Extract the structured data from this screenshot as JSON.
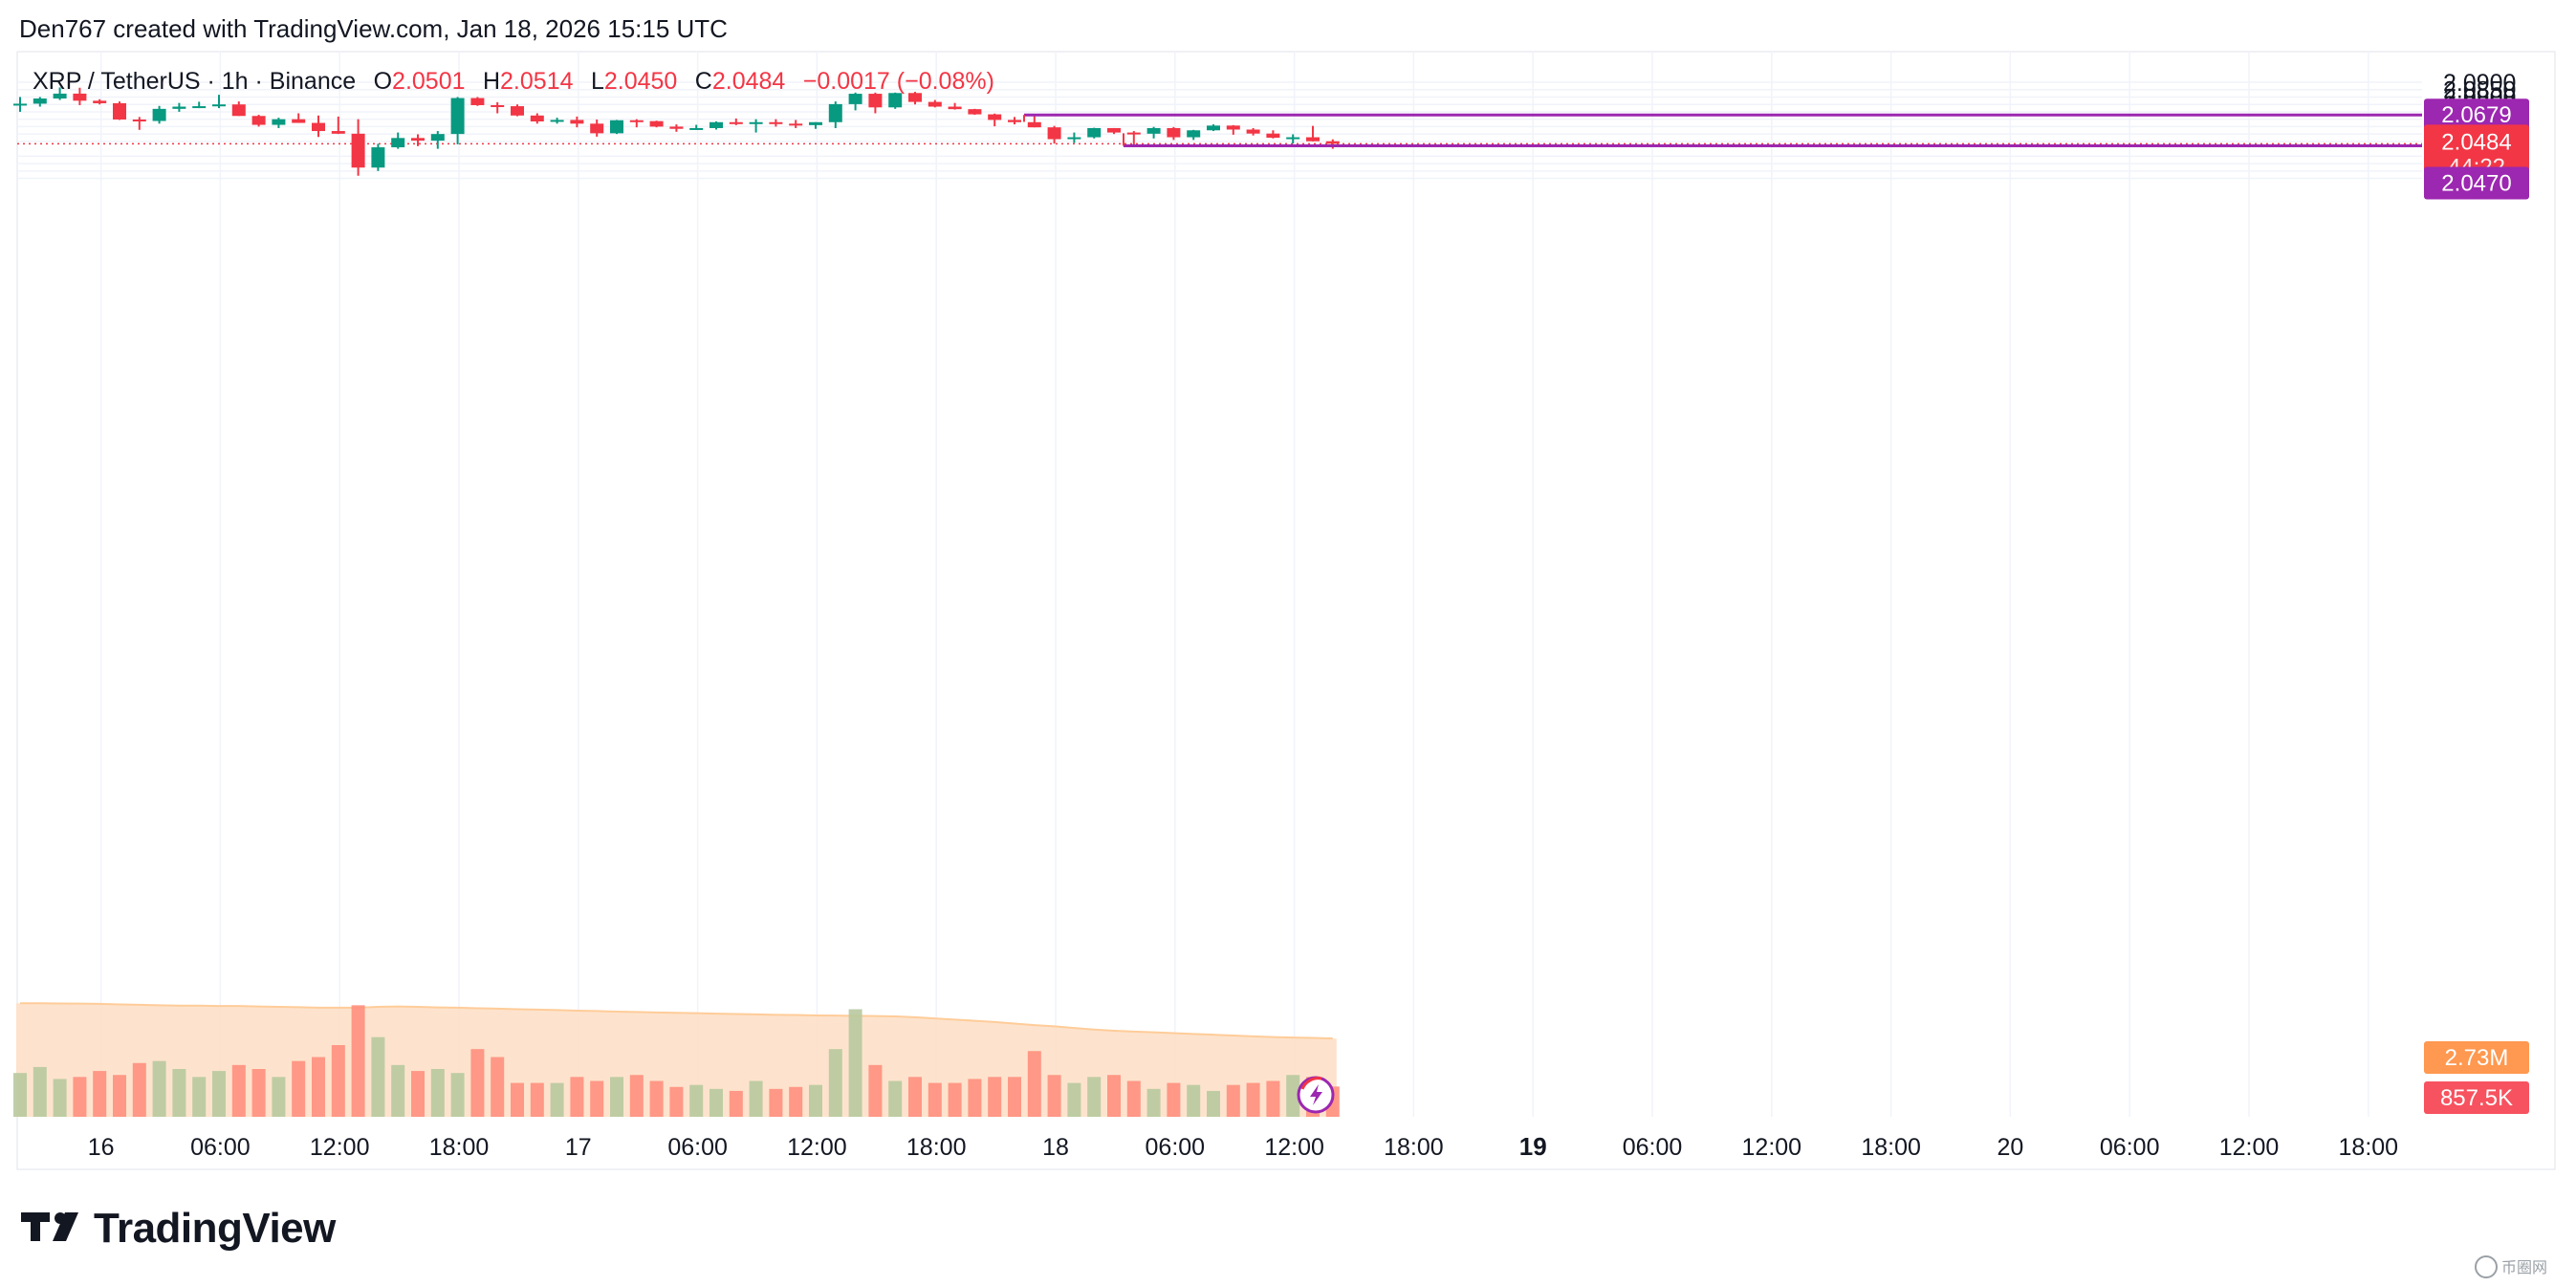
{
  "credit": "Den767 created with TradingView.com, Jan 18, 2026 15:15 UTC",
  "legend": {
    "symbol": "XRP / TetherUS · 1h · Binance",
    "open_label": "O",
    "open": "2.0501",
    "high_label": "H",
    "high": "2.0514",
    "low_label": "L",
    "low": "2.0450",
    "close_label": "C",
    "close": "2.0484",
    "change": "−0.0017 (−0.08%)"
  },
  "logo": {
    "text": "TradingView",
    "icon": "tradingview-logo-icon"
  },
  "watermark": {
    "text": "币圈网",
    "icon": "bqw-logo-icon"
  },
  "colors": {
    "up": "#089981",
    "down": "#f23645",
    "level": "#9c27b0",
    "volume_ma": "#ffcc99",
    "volume_ma_area": "#fde0c8",
    "volume_up": "#b8c99f",
    "volume_down": "#ff8f7e",
    "vol_ma_tag": "#ff9850",
    "vol_tag": "#f7525f"
  },
  "chart_data": {
    "type": "candlestick",
    "symbol": "XRP / TetherUS",
    "interval": "1h",
    "exchange": "Binance",
    "ylim": [
      2.0237,
      2.0922
    ],
    "price_ticks": [
      "2.0900",
      "2.0850",
      "2.0800",
      "2.0750",
      "2.0700",
      "2.0650",
      "2.0600",
      "2.0550",
      "2.0500",
      "2.0400",
      "2.0350",
      "2.0300",
      "2.0250"
    ],
    "time_ticks": [
      {
        "label": "16",
        "bold": false,
        "bar": 2
      },
      {
        "label": "06:00",
        "bold": false,
        "bar": 8
      },
      {
        "label": "12:00",
        "bold": false,
        "bar": 14
      },
      {
        "label": "18:00",
        "bold": false,
        "bar": 20
      },
      {
        "label": "17",
        "bold": false,
        "bar": 26
      },
      {
        "label": "06:00",
        "bold": false,
        "bar": 32
      },
      {
        "label": "12:00",
        "bold": false,
        "bar": 38
      },
      {
        "label": "18:00",
        "bold": false,
        "bar": 44
      },
      {
        "label": "18",
        "bold": false,
        "bar": 50
      },
      {
        "label": "06:00",
        "bold": false,
        "bar": 56
      },
      {
        "label": "12:00",
        "bold": false,
        "bar": 62
      },
      {
        "label": "18:00",
        "bold": false,
        "bar": 68
      },
      {
        "label": "19",
        "bold": true,
        "bar": 74
      },
      {
        "label": "06:00",
        "bold": false,
        "bar": 80
      },
      {
        "label": "12:00",
        "bold": false,
        "bar": 86
      },
      {
        "label": "18:00",
        "bold": false,
        "bar": 92
      },
      {
        "label": "20",
        "bold": false,
        "bar": 98
      },
      {
        "label": "06:00",
        "bold": false,
        "bar": 104
      },
      {
        "label": "12:00",
        "bold": false,
        "bar": 110
      },
      {
        "label": "18:00",
        "bold": false,
        "bar": 116
      }
    ],
    "candles": [
      {
        "o": 2.0745,
        "h": 2.08,
        "l": 2.07,
        "c": 2.0755
      },
      {
        "o": 2.0755,
        "h": 2.08,
        "l": 2.0735,
        "c": 2.079
      },
      {
        "o": 2.079,
        "h": 2.0865,
        "l": 2.078,
        "c": 2.0823
      },
      {
        "o": 2.0823,
        "h": 2.0863,
        "l": 2.0745,
        "c": 2.0775
      },
      {
        "o": 2.0775,
        "h": 2.0785,
        "l": 2.075,
        "c": 2.0758
      },
      {
        "o": 2.0758,
        "h": 2.077,
        "l": 2.0645,
        "c": 2.0648
      },
      {
        "o": 2.0648,
        "h": 2.0665,
        "l": 2.0578,
        "c": 2.0638
      },
      {
        "o": 2.0638,
        "h": 2.074,
        "l": 2.062,
        "c": 2.072
      },
      {
        "o": 2.072,
        "h": 2.076,
        "l": 2.07,
        "c": 2.0735
      },
      {
        "o": 2.0735,
        "h": 2.0768,
        "l": 2.0725,
        "c": 2.0738
      },
      {
        "o": 2.0738,
        "h": 2.0815,
        "l": 2.0725,
        "c": 2.075
      },
      {
        "o": 2.075,
        "h": 2.077,
        "l": 2.0672,
        "c": 2.0672
      },
      {
        "o": 2.0672,
        "h": 2.068,
        "l": 2.06,
        "c": 2.0612
      },
      {
        "o": 2.0612,
        "h": 2.066,
        "l": 2.059,
        "c": 2.065
      },
      {
        "o": 2.065,
        "h": 2.069,
        "l": 2.0625,
        "c": 2.0625
      },
      {
        "o": 2.0625,
        "h": 2.0675,
        "l": 2.053,
        "c": 2.057
      },
      {
        "o": 2.057,
        "h": 2.0668,
        "l": 2.055,
        "c": 2.0552
      },
      {
        "o": 2.0552,
        "h": 2.065,
        "l": 2.0268,
        "c": 2.0323
      },
      {
        "o": 2.0323,
        "h": 2.0484,
        "l": 2.03,
        "c": 2.046
      },
      {
        "o": 2.046,
        "h": 2.056,
        "l": 2.045,
        "c": 2.0523
      },
      {
        "o": 2.0523,
        "h": 2.0548,
        "l": 2.0468,
        "c": 2.0505
      },
      {
        "o": 2.0505,
        "h": 2.057,
        "l": 2.045,
        "c": 2.055
      },
      {
        "o": 2.055,
        "h": 2.08,
        "l": 2.048,
        "c": 2.0793
      },
      {
        "o": 2.0793,
        "h": 2.08,
        "l": 2.074,
        "c": 2.0745
      },
      {
        "o": 2.0745,
        "h": 2.0765,
        "l": 2.069,
        "c": 2.0738
      },
      {
        "o": 2.0738,
        "h": 2.075,
        "l": 2.067,
        "c": 2.0675
      },
      {
        "o": 2.0675,
        "h": 2.069,
        "l": 2.062,
        "c": 2.0635
      },
      {
        "o": 2.0635,
        "h": 2.066,
        "l": 2.062,
        "c": 2.0645
      },
      {
        "o": 2.0645,
        "h": 2.0668,
        "l": 2.0595,
        "c": 2.062
      },
      {
        "o": 2.062,
        "h": 2.0648,
        "l": 2.0532,
        "c": 2.0555
      },
      {
        "o": 2.0555,
        "h": 2.0645,
        "l": 2.055,
        "c": 2.0643
      },
      {
        "o": 2.0643,
        "h": 2.065,
        "l": 2.0595,
        "c": 2.0637
      },
      {
        "o": 2.0637,
        "h": 2.064,
        "l": 2.0595,
        "c": 2.06
      },
      {
        "o": 2.06,
        "h": 2.0615,
        "l": 2.0565,
        "c": 2.0585
      },
      {
        "o": 2.0585,
        "h": 2.0612,
        "l": 2.0578,
        "c": 2.059
      },
      {
        "o": 2.059,
        "h": 2.0635,
        "l": 2.058,
        "c": 2.063
      },
      {
        "o": 2.063,
        "h": 2.0655,
        "l": 2.061,
        "c": 2.062
      },
      {
        "o": 2.062,
        "h": 2.065,
        "l": 2.056,
        "c": 2.063
      },
      {
        "o": 2.063,
        "h": 2.065,
        "l": 2.06,
        "c": 2.062
      },
      {
        "o": 2.062,
        "h": 2.0645,
        "l": 2.059,
        "c": 2.061
      },
      {
        "o": 2.061,
        "h": 2.063,
        "l": 2.0585,
        "c": 2.063
      },
      {
        "o": 2.063,
        "h": 2.077,
        "l": 2.059,
        "c": 2.0752
      },
      {
        "o": 2.0752,
        "h": 2.083,
        "l": 2.071,
        "c": 2.0822
      },
      {
        "o": 2.0822,
        "h": 2.083,
        "l": 2.069,
        "c": 2.073
      },
      {
        "o": 2.073,
        "h": 2.083,
        "l": 2.072,
        "c": 2.0827
      },
      {
        "o": 2.0827,
        "h": 2.0835,
        "l": 2.075,
        "c": 2.0767
      },
      {
        "o": 2.0767,
        "h": 2.078,
        "l": 2.073,
        "c": 2.0735
      },
      {
        "o": 2.0735,
        "h": 2.076,
        "l": 2.0715,
        "c": 2.0718
      },
      {
        "o": 2.0718,
        "h": 2.072,
        "l": 2.068,
        "c": 2.0683
      },
      {
        "o": 2.0683,
        "h": 2.0688,
        "l": 2.0602,
        "c": 2.0645
      },
      {
        "o": 2.0645,
        "h": 2.0665,
        "l": 2.0615,
        "c": 2.063
      },
      {
        "o": 2.063,
        "h": 2.068,
        "l": 2.0595,
        "c": 2.0595
      },
      {
        "o": 2.0595,
        "h": 2.0605,
        "l": 2.0485,
        "c": 2.0515
      },
      {
        "o": 2.0515,
        "h": 2.056,
        "l": 2.049,
        "c": 2.0528
      },
      {
        "o": 2.0528,
        "h": 2.0592,
        "l": 2.052,
        "c": 2.059
      },
      {
        "o": 2.059,
        "h": 2.059,
        "l": 2.055,
        "c": 2.056
      },
      {
        "o": 2.056,
        "h": 2.057,
        "l": 2.0472,
        "c": 2.0552
      },
      {
        "o": 2.0552,
        "h": 2.0598,
        "l": 2.052,
        "c": 2.059
      },
      {
        "o": 2.059,
        "h": 2.0597,
        "l": 2.051,
        "c": 2.0528
      },
      {
        "o": 2.0528,
        "h": 2.0578,
        "l": 2.051,
        "c": 2.0575
      },
      {
        "o": 2.0575,
        "h": 2.0615,
        "l": 2.057,
        "c": 2.0607
      },
      {
        "o": 2.0607,
        "h": 2.061,
        "l": 2.0545,
        "c": 2.058
      },
      {
        "o": 2.058,
        "h": 2.059,
        "l": 2.054,
        "c": 2.0553
      },
      {
        "o": 2.0553,
        "h": 2.0575,
        "l": 2.052,
        "c": 2.0525
      },
      {
        "o": 2.0525,
        "h": 2.0548,
        "l": 2.0485,
        "c": 2.0528
      },
      {
        "o": 2.0528,
        "h": 2.0605,
        "l": 2.05,
        "c": 2.0501
      },
      {
        "o": 2.0501,
        "h": 2.0514,
        "l": 2.045,
        "c": 2.0484
      }
    ],
    "volume": {
      "max": 3600,
      "ma": [
        2850,
        2850,
        2845,
        2840,
        2835,
        2820,
        2810,
        2800,
        2790,
        2790,
        2780,
        2780,
        2770,
        2760,
        2750,
        2740,
        2740,
        2740,
        2760,
        2770,
        2760,
        2745,
        2740,
        2725,
        2715,
        2700,
        2690,
        2680,
        2665,
        2655,
        2640,
        2630,
        2620,
        2610,
        2600,
        2590,
        2580,
        2570,
        2560,
        2555,
        2545,
        2540,
        2535,
        2530,
        2520,
        2500,
        2470,
        2440,
        2410,
        2380,
        2340,
        2300,
        2270,
        2230,
        2190,
        2160,
        2140,
        2120,
        2100,
        2080,
        2060,
        2040,
        2020,
        2000,
        1990,
        1980,
        1965
      ],
      "bars": [
        1100,
        1250,
        950,
        1000,
        1150,
        1050,
        1350,
        1400,
        1200,
        1000,
        1150,
        1300,
        1200,
        1000,
        1400,
        1500,
        1800,
        2800,
        2000,
        1300,
        1150,
        1200,
        1100,
        1700,
        1500,
        850,
        850,
        850,
        1000,
        900,
        1000,
        1050,
        900,
        750,
        800,
        700,
        650,
        900,
        700,
        750,
        800,
        1700,
        2700,
        1300,
        900,
        1000,
        850,
        850,
        950,
        1000,
        1000,
        1650,
        1050,
        850,
        1000,
        1050,
        900,
        700,
        850,
        800,
        650,
        800,
        850,
        900,
        1050,
        1000,
        760
      ]
    },
    "current_price": {
      "value": "2.0484",
      "countdown": "44:22"
    },
    "levels": [
      {
        "value": "2.0679",
        "y": 2.0679,
        "start_bar": 50
      },
      {
        "value": "2.0470",
        "y": 2.047,
        "start_bar": 55
      }
    ],
    "volume_tags": {
      "ma": "2.73M",
      "last": "857.5K"
    }
  }
}
